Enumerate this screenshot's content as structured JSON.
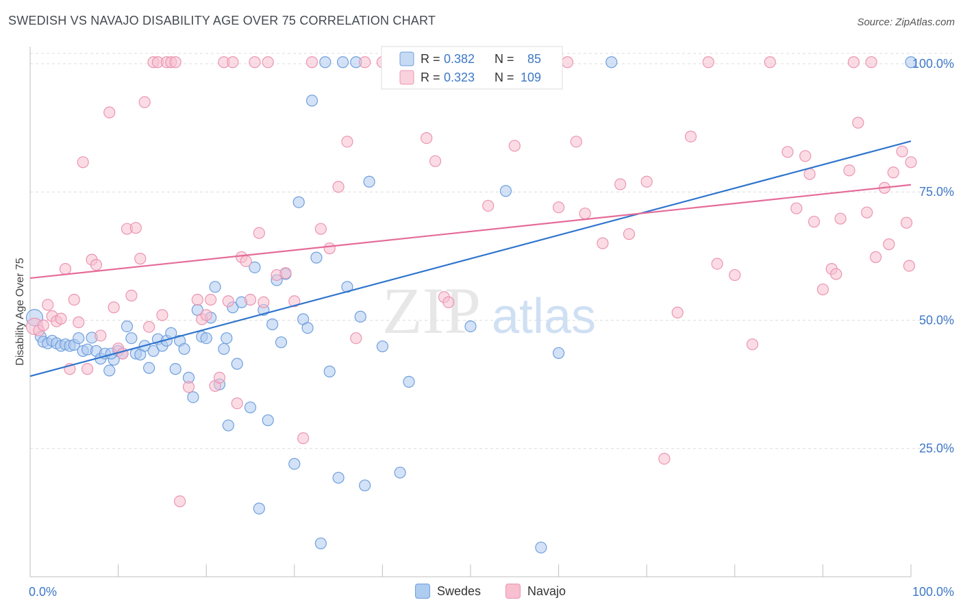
{
  "header": {
    "title": "SWEDISH VS NAVAJO DISABILITY AGE OVER 75 CORRELATION CHART",
    "source": "Source: ZipAtlas.com"
  },
  "watermark": {
    "zip": "ZIP",
    "atlas": "atlas"
  },
  "colors": {
    "swedes_fill": "#aecbf0",
    "swedes_stroke": "#6f9fdc",
    "swedes_line": "#2e74cc",
    "navajo_fill": "#f7bfd0",
    "navajo_stroke": "#eb94b2",
    "navajo_line": "#e56b98",
    "axis_label": "#3d78c6",
    "grid": "#dcdcdc"
  },
  "legend": {
    "rows": [
      {
        "r_label": "R = ",
        "r_value": "0.382",
        "n_label": "N = ",
        "n_value": "85"
      },
      {
        "r_label": "R = ",
        "r_value": "0.323",
        "n_label": "N = ",
        "n_value": "109"
      }
    ],
    "bottom": [
      "Swedes",
      "Navajo"
    ]
  },
  "chart_data": {
    "type": "scatter",
    "title": "SWEDISH VS NAVAJO DISABILITY AGE OVER 75 CORRELATION CHART",
    "xlabel": "",
    "ylabel": "Disability Age Over 75",
    "xlim": [
      0,
      100
    ],
    "ylim": [
      0,
      102
    ],
    "x_tick_labels": [
      "0.0%",
      "100.0%"
    ],
    "y_tick_values": [
      25,
      50,
      75,
      100
    ],
    "y_tick_labels": [
      "25.0%",
      "50.0%",
      "75.0%",
      "100.0%"
    ],
    "grid": true,
    "legend_position": "top-center",
    "series": [
      {
        "name": "Swedes",
        "r": 0.382,
        "n": 85,
        "trend": {
          "x": [
            0,
            100
          ],
          "y": [
            39.1,
            84.9
          ]
        },
        "points": [
          [
            0.5,
            50.5
          ],
          [
            1.2,
            46.8
          ],
          [
            1.5,
            45.8
          ],
          [
            2,
            45.5
          ],
          [
            2.5,
            46
          ],
          [
            3,
            45.5
          ],
          [
            3.5,
            45
          ],
          [
            4,
            45.3
          ],
          [
            4.5,
            45
          ],
          [
            5,
            45.2
          ],
          [
            5.5,
            46.5
          ],
          [
            6,
            44
          ],
          [
            6.5,
            44.3
          ],
          [
            7,
            46.6
          ],
          [
            7.5,
            44
          ],
          [
            8,
            42.5
          ],
          [
            8.5,
            43.5
          ],
          [
            9,
            40.2
          ],
          [
            9.5,
            42.3
          ],
          [
            10,
            44
          ],
          [
            10.5,
            43.5
          ],
          [
            11,
            48.8
          ],
          [
            11.5,
            46.5
          ],
          [
            12,
            43.5
          ],
          [
            12.5,
            43.3
          ],
          [
            13,
            45
          ],
          [
            13.5,
            40.7
          ],
          [
            14,
            44
          ],
          [
            14.5,
            46.3
          ],
          [
            15,
            45
          ],
          [
            15.5,
            46
          ],
          [
            16,
            47.5
          ],
          [
            16.5,
            40.5
          ],
          [
            17,
            46
          ],
          [
            17.5,
            44.4
          ],
          [
            18,
            38.8
          ],
          [
            18.5,
            35
          ],
          [
            19,
            52
          ],
          [
            19.5,
            46.8
          ],
          [
            20,
            46.5
          ],
          [
            20.5,
            50.5
          ],
          [
            21,
            56.5
          ],
          [
            21.5,
            37.5
          ],
          [
            22,
            44.4
          ],
          [
            22.5,
            29.5
          ],
          [
            23,
            52.5
          ],
          [
            23.5,
            41.5
          ],
          [
            24,
            53.5
          ],
          [
            25,
            33
          ],
          [
            25.5,
            60.3
          ],
          [
            26,
            13.3
          ],
          [
            26.5,
            52
          ],
          [
            27,
            30.5
          ],
          [
            27.5,
            49.2
          ],
          [
            28,
            57.8
          ],
          [
            28.5,
            45.7
          ],
          [
            29,
            59
          ],
          [
            30,
            22
          ],
          [
            30.5,
            73
          ],
          [
            31,
            50.2
          ],
          [
            31.5,
            48.5
          ],
          [
            32,
            92.8
          ],
          [
            32.5,
            62.2
          ],
          [
            33,
            6.5
          ],
          [
            33.5,
            100.3
          ],
          [
            34,
            40
          ],
          [
            35,
            19.3
          ],
          [
            35.5,
            100.3
          ],
          [
            36,
            56.5
          ],
          [
            37,
            100.3
          ],
          [
            37.5,
            50.7
          ],
          [
            38,
            17.8
          ],
          [
            38.5,
            77
          ],
          [
            40,
            44.9
          ],
          [
            42,
            20.3
          ],
          [
            43,
            38
          ],
          [
            50,
            48.8
          ],
          [
            54,
            75.2
          ],
          [
            54.5,
            100.3
          ],
          [
            58,
            5.7
          ],
          [
            60,
            43.6
          ],
          [
            66,
            100.3
          ],
          [
            100,
            100.3
          ],
          [
            22.3,
            46.5
          ],
          [
            9.2,
            43.5
          ]
        ]
      },
      {
        "name": "Navajo",
        "r": 0.323,
        "n": 109,
        "trend": {
          "x": [
            0,
            100
          ],
          "y": [
            58.2,
            76.4
          ]
        },
        "points": [
          [
            0.5,
            48.8
          ],
          [
            1,
            48
          ],
          [
            1.5,
            49
          ],
          [
            2,
            53
          ],
          [
            2.5,
            50.8
          ],
          [
            3,
            49.8
          ],
          [
            3.5,
            50.3
          ],
          [
            4,
            60
          ],
          [
            4.5,
            40.5
          ],
          [
            5,
            54
          ],
          [
            5.5,
            49.6
          ],
          [
            6,
            80.8
          ],
          [
            6.5,
            40.5
          ],
          [
            7,
            61.8
          ],
          [
            7.5,
            60.8
          ],
          [
            8,
            47
          ],
          [
            9,
            90.5
          ],
          [
            9.5,
            52.5
          ],
          [
            10,
            44.5
          ],
          [
            10.5,
            43.5
          ],
          [
            11,
            67.8
          ],
          [
            11.5,
            54.8
          ],
          [
            12,
            68
          ],
          [
            12.5,
            62
          ],
          [
            13,
            92.5
          ],
          [
            13.5,
            48.7
          ],
          [
            14,
            100.3
          ],
          [
            14.5,
            100.3
          ],
          [
            15,
            51
          ],
          [
            15.5,
            100.3
          ],
          [
            16,
            100.3
          ],
          [
            16.5,
            100.3
          ],
          [
            17,
            14.7
          ],
          [
            18,
            37
          ],
          [
            19,
            54
          ],
          [
            19.5,
            50.2
          ],
          [
            20,
            51
          ],
          [
            20.5,
            54
          ],
          [
            21,
            37.2
          ],
          [
            21.5,
            38.8
          ],
          [
            22,
            100.3
          ],
          [
            22.5,
            53.7
          ],
          [
            23,
            100.3
          ],
          [
            23.5,
            33.8
          ],
          [
            24,
            62.3
          ],
          [
            24.5,
            61.5
          ],
          [
            25,
            54
          ],
          [
            25.5,
            100.3
          ],
          [
            26,
            67
          ],
          [
            26.5,
            53.5
          ],
          [
            27,
            100.3
          ],
          [
            28,
            58.8
          ],
          [
            29,
            59.2
          ],
          [
            30,
            53.7
          ],
          [
            31,
            27
          ],
          [
            32,
            100.3
          ],
          [
            33,
            67.8
          ],
          [
            34,
            64
          ],
          [
            35,
            76
          ],
          [
            36,
            84.8
          ],
          [
            37,
            46.5
          ],
          [
            38,
            100.3
          ],
          [
            40,
            100.3
          ],
          [
            42,
            100.3
          ],
          [
            45,
            85.5
          ],
          [
            46,
            81
          ],
          [
            47,
            54.5
          ],
          [
            47.5,
            53.5
          ],
          [
            52,
            72.3
          ],
          [
            53,
            100.3
          ],
          [
            55,
            84
          ],
          [
            60,
            72
          ],
          [
            61,
            100.3
          ],
          [
            62,
            84.8
          ],
          [
            63,
            70.8
          ],
          [
            65,
            65
          ],
          [
            67,
            76.5
          ],
          [
            68,
            66.8
          ],
          [
            70,
            77
          ],
          [
            72,
            23
          ],
          [
            73.5,
            51.5
          ],
          [
            75,
            85.8
          ],
          [
            77,
            100.3
          ],
          [
            78,
            61
          ],
          [
            80,
            58.8
          ],
          [
            82,
            45.3
          ],
          [
            84,
            100.3
          ],
          [
            86,
            82.8
          ],
          [
            87,
            71.8
          ],
          [
            88,
            82
          ],
          [
            89,
            69.2
          ],
          [
            90,
            56
          ],
          [
            91,
            60
          ],
          [
            91.5,
            59
          ],
          [
            92,
            69.8
          ],
          [
            93,
            79.2
          ],
          [
            94,
            88.5
          ],
          [
            95,
            71
          ],
          [
            96,
            62.3
          ],
          [
            97,
            75.8
          ],
          [
            98,
            78.8
          ],
          [
            99,
            82.9
          ],
          [
            99.5,
            69
          ],
          [
            100,
            80.8
          ],
          [
            93.5,
            100.3
          ],
          [
            95.5,
            100.3
          ],
          [
            97.5,
            64.8
          ],
          [
            99.8,
            60.6
          ],
          [
            88.5,
            78.5
          ]
        ]
      }
    ]
  }
}
